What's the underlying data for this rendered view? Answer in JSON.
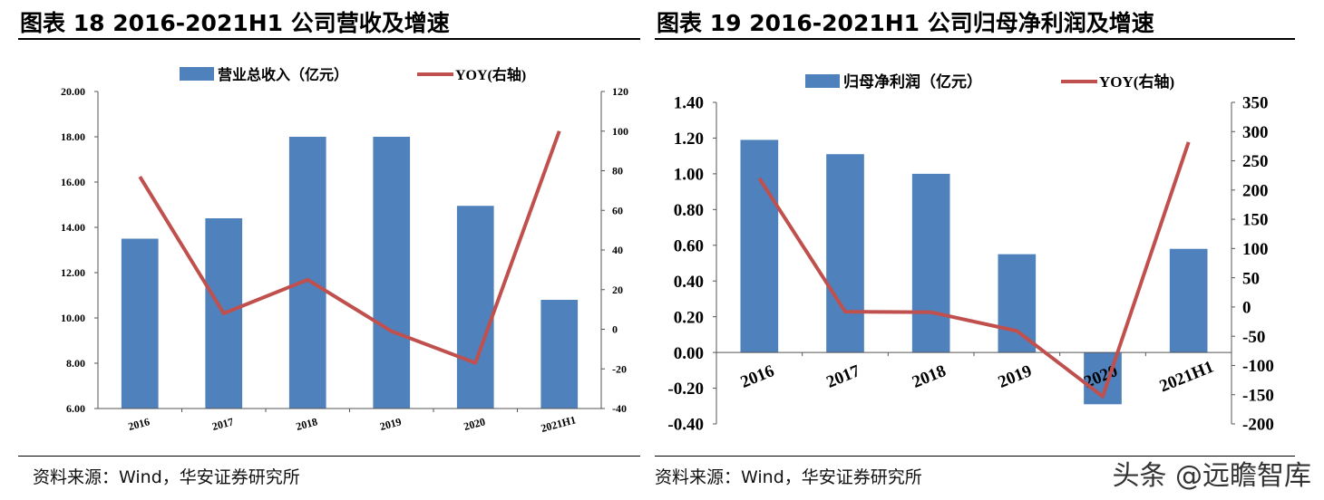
{
  "left": {
    "title": "图表 18 2016-2021H1 公司营收及增速",
    "source": "资料来源：Wind，华安证券研究所"
  },
  "right": {
    "title": "图表 19 2016-2021H1 公司归母净利润及增速",
    "source": "资料来源：Wind，华安证券研究所"
  },
  "watermark": "头条 @远瞻智库",
  "colors": {
    "bar": "#4f81bd",
    "line": "#c0504d"
  },
  "chart_data": [
    {
      "type": "bar+line",
      "categories": [
        "2016",
        "2017",
        "2018",
        "2019",
        "2020",
        "2021H1"
      ],
      "series": [
        {
          "name": "营业总收入（亿元）",
          "type": "bar",
          "axis": "left",
          "values": [
            13.5,
            14.4,
            18.0,
            18.0,
            14.95,
            10.8
          ]
        },
        {
          "name": "YOY(右轴)",
          "type": "line",
          "axis": "right",
          "values": [
            77,
            8,
            25,
            -1,
            -17,
            100
          ]
        }
      ],
      "ylim_left": [
        6,
        20
      ],
      "yticks_left": [
        "6.00",
        "8.00",
        "10.00",
        "12.00",
        "14.00",
        "16.00",
        "18.00",
        "20.00"
      ],
      "ylim_right": [
        -40,
        120
      ],
      "yticks_right": [
        "-40",
        "-20",
        "0",
        "20",
        "40",
        "60",
        "80",
        "100",
        "120"
      ],
      "legend": "top",
      "grid": false
    },
    {
      "type": "bar+line",
      "categories": [
        "2016",
        "2017",
        "2018",
        "2019",
        "2020",
        "2021H1"
      ],
      "series": [
        {
          "name": "归母净利润（亿元）",
          "type": "bar",
          "axis": "left",
          "values": [
            1.19,
            1.11,
            1.0,
            0.55,
            -0.29,
            0.58
          ]
        },
        {
          "name": "YOY(右轴)",
          "type": "line",
          "axis": "right",
          "values": [
            220,
            -8,
            -9,
            -41,
            -153,
            282
          ]
        }
      ],
      "ylim_left": [
        -0.4,
        1.4
      ],
      "yticks_left": [
        "-0.40",
        "-0.20",
        "0.00",
        "0.20",
        "0.40",
        "0.60",
        "0.80",
        "1.00",
        "1.20",
        "1.40"
      ],
      "ylim_right": [
        -200,
        350
      ],
      "yticks_right": [
        "-200",
        "-150",
        "-100",
        "-50",
        "0",
        "50",
        "100",
        "150",
        "200",
        "250",
        "300",
        "350"
      ],
      "legend": "top",
      "grid": false
    }
  ]
}
